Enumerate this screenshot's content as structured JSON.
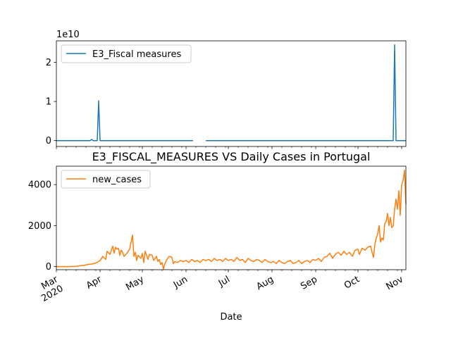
{
  "chart_data": [
    {
      "type": "line",
      "title": "",
      "xlabel": "",
      "ylabel": "",
      "offset_text": "1e10",
      "ylim": [
        -0.15,
        2.55
      ],
      "yticks": [
        "0",
        "1",
        "2"
      ],
      "grid": false,
      "legend": "upper left",
      "color": "#1f77b4",
      "series": [
        {
          "name": "E3_Fiscal measures",
          "segments": [
            [
              {
                "x": "2020-03-01",
                "y": 0
              },
              {
                "x": "2020-03-25",
                "y": 0
              },
              {
                "x": "2020-03-26",
                "y": 0.03
              },
              {
                "x": "2020-03-27",
                "y": 0
              },
              {
                "x": "2020-03-30",
                "y": 0
              },
              {
                "x": "2020-03-31",
                "y": 1.02
              },
              {
                "x": "2020-04-01",
                "y": 0
              },
              {
                "x": "2020-06-06",
                "y": 0
              }
            ],
            [
              {
                "x": "2020-06-15",
                "y": 0
              },
              {
                "x": "2020-10-26",
                "y": 0
              },
              {
                "x": "2020-10-27",
                "y": 2.45
              },
              {
                "x": "2020-10-28",
                "y": 0
              },
              {
                "x": "2020-11-04",
                "y": 0
              }
            ]
          ]
        }
      ]
    },
    {
      "type": "line",
      "title": "E3_FISCAL_MEASURES VS Daily Cases in Portugal",
      "xlabel": "Date",
      "ylabel": "",
      "ylim": [
        -150,
        4900
      ],
      "yticks": [
        "0",
        "2000",
        "4000"
      ],
      "x_tick_labels": [
        "Mar\n2020",
        "Apr",
        "May",
        "Jun",
        "Jul",
        "Aug",
        "Sep",
        "Oct",
        "Nov"
      ],
      "grid": false,
      "legend": "upper left",
      "color": "#ff7f0e",
      "series": [
        {
          "name": "new_cases",
          "points": [
            [
              "2020-03-01",
              0
            ],
            [
              "2020-03-10",
              0
            ],
            [
              "2020-03-15",
              10
            ],
            [
              "2020-03-20",
              60
            ],
            [
              "2020-03-25",
              120
            ],
            [
              "2020-03-28",
              150
            ],
            [
              "2020-03-31",
              250
            ],
            [
              "2020-04-01",
              300
            ],
            [
              "2020-04-03",
              500
            ],
            [
              "2020-04-05",
              350
            ],
            [
              "2020-04-06",
              750
            ],
            [
              "2020-04-08",
              600
            ],
            [
              "2020-04-09",
              800
            ],
            [
              "2020-04-10",
              1000
            ],
            [
              "2020-04-11",
              650
            ],
            [
              "2020-04-12",
              950
            ],
            [
              "2020-04-13",
              850
            ],
            [
              "2020-04-14",
              900
            ],
            [
              "2020-04-15",
              550
            ],
            [
              "2020-04-16",
              800
            ],
            [
              "2020-04-17",
              700
            ],
            [
              "2020-04-18",
              500
            ],
            [
              "2020-04-20",
              650
            ],
            [
              "2020-04-22",
              850
            ],
            [
              "2020-04-24",
              1540
            ],
            [
              "2020-04-25",
              500
            ],
            [
              "2020-04-26",
              700
            ],
            [
              "2020-04-27",
              300
            ],
            [
              "2020-04-28",
              550
            ],
            [
              "2020-04-30",
              400
            ],
            [
              "2020-05-01",
              650
            ],
            [
              "2020-05-02",
              200
            ],
            [
              "2020-05-03",
              750
            ],
            [
              "2020-05-05",
              350
            ],
            [
              "2020-05-06",
              600
            ],
            [
              "2020-05-08",
              550
            ],
            [
              "2020-05-09",
              300
            ],
            [
              "2020-05-11",
              500
            ],
            [
              "2020-05-12",
              250
            ],
            [
              "2020-05-13",
              350
            ],
            [
              "2020-05-14",
              100
            ],
            [
              "2020-05-15",
              200
            ],
            [
              "2020-05-16",
              -120
            ],
            [
              "2020-05-17",
              150
            ],
            [
              "2020-05-18",
              300
            ],
            [
              "2020-05-20",
              500
            ],
            [
              "2020-05-22",
              450
            ],
            [
              "2020-05-23",
              150
            ],
            [
              "2020-05-24",
              250
            ],
            [
              "2020-05-26",
              200
            ],
            [
              "2020-05-28",
              300
            ],
            [
              "2020-05-30",
              250
            ],
            [
              "2020-06-01",
              300
            ],
            [
              "2020-06-03",
              200
            ],
            [
              "2020-06-05",
              350
            ],
            [
              "2020-06-07",
              250
            ],
            [
              "2020-06-09",
              300
            ],
            [
              "2020-06-11",
              200
            ],
            [
              "2020-06-13",
              350
            ],
            [
              "2020-06-15",
              300
            ],
            [
              "2020-06-17",
              350
            ],
            [
              "2020-06-19",
              250
            ],
            [
              "2020-06-21",
              400
            ],
            [
              "2020-06-23",
              300
            ],
            [
              "2020-06-25",
              350
            ],
            [
              "2020-06-27",
              250
            ],
            [
              "2020-06-29",
              400
            ],
            [
              "2020-07-01",
              300
            ],
            [
              "2020-07-03",
              350
            ],
            [
              "2020-07-05",
              250
            ],
            [
              "2020-07-07",
              450
            ],
            [
              "2020-07-09",
              300
            ],
            [
              "2020-07-11",
              350
            ],
            [
              "2020-07-13",
              200
            ],
            [
              "2020-07-15",
              400
            ],
            [
              "2020-07-17",
              300
            ],
            [
              "2020-07-19",
              250
            ],
            [
              "2020-07-21",
              350
            ],
            [
              "2020-07-23",
              300
            ],
            [
              "2020-07-25",
              200
            ],
            [
              "2020-07-27",
              350
            ],
            [
              "2020-07-29",
              250
            ],
            [
              "2020-07-31",
              200
            ],
            [
              "2020-08-02",
              250
            ],
            [
              "2020-08-04",
              150
            ],
            [
              "2020-08-06",
              300
            ],
            [
              "2020-08-08",
              200
            ],
            [
              "2020-08-10",
              150
            ],
            [
              "2020-08-12",
              250
            ],
            [
              "2020-08-14",
              300
            ],
            [
              "2020-08-16",
              150
            ],
            [
              "2020-08-18",
              200
            ],
            [
              "2020-08-20",
              300
            ],
            [
              "2020-08-22",
              150
            ],
            [
              "2020-08-24",
              250
            ],
            [
              "2020-08-26",
              300
            ],
            [
              "2020-08-28",
              200
            ],
            [
              "2020-08-30",
              350
            ],
            [
              "2020-09-01",
              300
            ],
            [
              "2020-09-03",
              400
            ],
            [
              "2020-09-05",
              250
            ],
            [
              "2020-09-07",
              450
            ],
            [
              "2020-09-09",
              500
            ],
            [
              "2020-09-11",
              650
            ],
            [
              "2020-09-13",
              400
            ],
            [
              "2020-09-15",
              600
            ],
            [
              "2020-09-17",
              700
            ],
            [
              "2020-09-19",
              550
            ],
            [
              "2020-09-21",
              750
            ],
            [
              "2020-09-23",
              600
            ],
            [
              "2020-09-25",
              700
            ],
            [
              "2020-09-27",
              500
            ],
            [
              "2020-09-29",
              800
            ],
            [
              "2020-10-01",
              850
            ],
            [
              "2020-10-02",
              600
            ],
            [
              "2020-10-04",
              900
            ],
            [
              "2020-10-06",
              800
            ],
            [
              "2020-10-08",
              950
            ],
            [
              "2020-10-10",
              1000
            ],
            [
              "2020-10-11",
              700
            ],
            [
              "2020-10-12",
              450
            ],
            [
              "2020-10-13",
              1100
            ],
            [
              "2020-10-14",
              1400
            ],
            [
              "2020-10-15",
              1600
            ],
            [
              "2020-10-16",
              2000
            ],
            [
              "2020-10-17",
              1200
            ],
            [
              "2020-10-18",
              1400
            ],
            [
              "2020-10-19",
              1300
            ],
            [
              "2020-10-20",
              2100
            ],
            [
              "2020-10-21",
              2200
            ],
            [
              "2020-10-22",
              2600
            ],
            [
              "2020-10-23",
              2000
            ],
            [
              "2020-10-24",
              2400
            ],
            [
              "2020-10-25",
              1900
            ],
            [
              "2020-10-26",
              2000
            ],
            [
              "2020-10-27",
              2800
            ],
            [
              "2020-10-28",
              3300
            ],
            [
              "2020-10-29",
              2800
            ],
            [
              "2020-10-30",
              3700
            ],
            [
              "2020-10-31",
              2500
            ],
            [
              "2020-11-01",
              4000
            ],
            [
              "2020-11-02",
              4200
            ],
            [
              "2020-11-03",
              4700
            ],
            [
              "2020-11-04",
              3050
            ]
          ]
        }
      ]
    }
  ]
}
